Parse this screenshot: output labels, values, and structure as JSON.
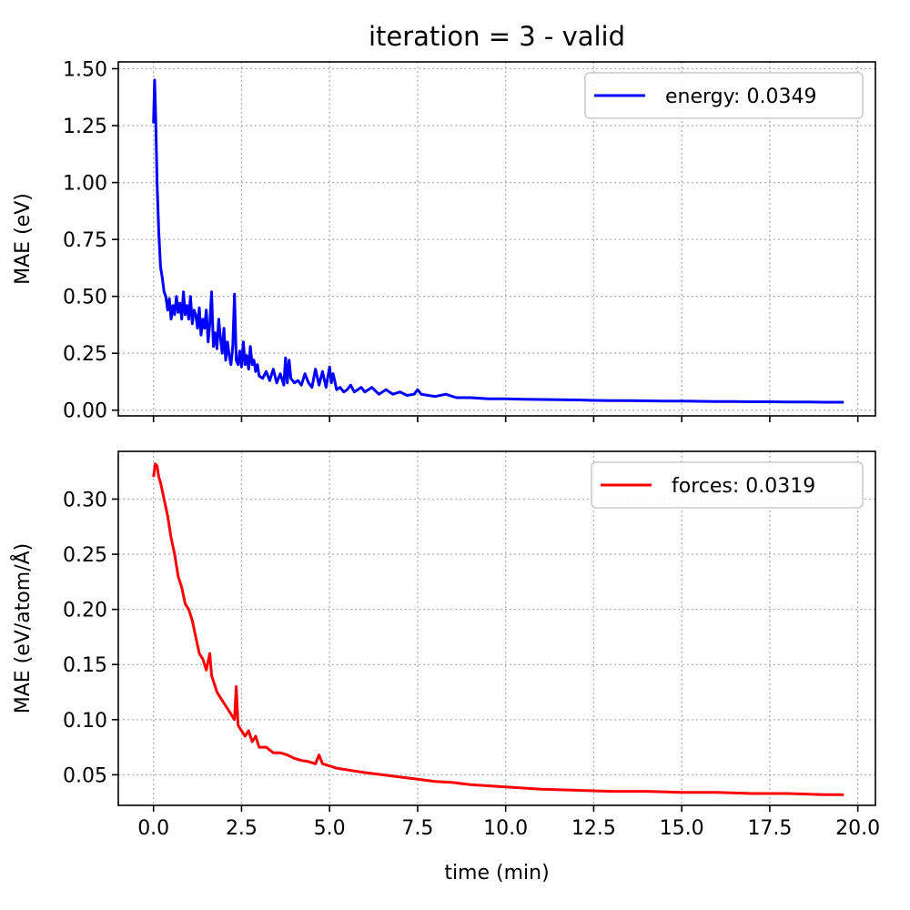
{
  "figure": {
    "title": "iteration = 3 - valid",
    "xlabel": "time (min)"
  },
  "chart_data": [
    {
      "type": "line",
      "title": "iteration = 3 - valid",
      "xlabel": "",
      "ylabel": "MAE (eV)",
      "xlim": [
        -1,
        20.5
      ],
      "ylim": [
        -0.025,
        1.53
      ],
      "xticks": [
        "0.0",
        "2.5",
        "5.0",
        "7.5",
        "10.0",
        "12.5",
        "15.0",
        "17.5",
        "20.0"
      ],
      "xtick_values": [
        0,
        2.5,
        5,
        7.5,
        10,
        12.5,
        15,
        17.5,
        20
      ],
      "show_xtick_labels": false,
      "yticks": [
        "0.00",
        "0.25",
        "0.50",
        "0.75",
        "1.00",
        "1.25",
        "1.50"
      ],
      "ytick_values": [
        0,
        0.25,
        0.5,
        0.75,
        1.0,
        1.25,
        1.5
      ],
      "grid": true,
      "legend_position": "top-right",
      "color": "#0000ff",
      "series": [
        {
          "name": "energy: 0.0349",
          "x": [
            0,
            0.03,
            0.06,
            0.1,
            0.15,
            0.2,
            0.25,
            0.3,
            0.35,
            0.4,
            0.45,
            0.5,
            0.55,
            0.6,
            0.65,
            0.7,
            0.75,
            0.8,
            0.85,
            0.9,
            0.95,
            1.0,
            1.05,
            1.1,
            1.15,
            1.2,
            1.25,
            1.3,
            1.35,
            1.4,
            1.45,
            1.5,
            1.55,
            1.6,
            1.65,
            1.7,
            1.75,
            1.8,
            1.85,
            1.9,
            1.95,
            2.0,
            2.05,
            2.1,
            2.15,
            2.2,
            2.25,
            2.3,
            2.35,
            2.4,
            2.45,
            2.5,
            2.55,
            2.6,
            2.65,
            2.7,
            2.75,
            2.8,
            2.85,
            2.9,
            2.95,
            3.0,
            3.1,
            3.2,
            3.3,
            3.4,
            3.5,
            3.6,
            3.7,
            3.75,
            3.8,
            3.85,
            3.9,
            4.0,
            4.1,
            4.2,
            4.3,
            4.4,
            4.5,
            4.6,
            4.7,
            4.8,
            4.9,
            5.0,
            5.05,
            5.1,
            5.2,
            5.3,
            5.4,
            5.5,
            5.6,
            5.7,
            5.8,
            5.9,
            6.0,
            6.2,
            6.4,
            6.6,
            6.8,
            7.0,
            7.2,
            7.4,
            7.5,
            7.6,
            7.8,
            8.0,
            8.3,
            8.6,
            9.0,
            9.5,
            10.0,
            10.5,
            11.0,
            11.5,
            12.0,
            12.5,
            13.0,
            13.5,
            14.0,
            14.5,
            15.0,
            15.5,
            16.0,
            16.5,
            17.0,
            17.5,
            18.0,
            18.5,
            19.0,
            19.6
          ],
          "y": [
            1.26,
            1.45,
            1.3,
            1.0,
            0.78,
            0.63,
            0.58,
            0.52,
            0.5,
            0.44,
            0.49,
            0.4,
            0.46,
            0.42,
            0.5,
            0.43,
            0.47,
            0.4,
            0.52,
            0.42,
            0.46,
            0.4,
            0.5,
            0.38,
            0.44,
            0.42,
            0.36,
            0.45,
            0.33,
            0.4,
            0.36,
            0.44,
            0.3,
            0.38,
            0.52,
            0.28,
            0.34,
            0.27,
            0.4,
            0.32,
            0.25,
            0.36,
            0.22,
            0.3,
            0.24,
            0.2,
            0.28,
            0.51,
            0.22,
            0.2,
            0.26,
            0.19,
            0.3,
            0.2,
            0.24,
            0.18,
            0.28,
            0.2,
            0.22,
            0.17,
            0.2,
            0.15,
            0.14,
            0.17,
            0.13,
            0.18,
            0.12,
            0.16,
            0.11,
            0.23,
            0.12,
            0.22,
            0.14,
            0.12,
            0.13,
            0.11,
            0.16,
            0.12,
            0.1,
            0.18,
            0.11,
            0.17,
            0.1,
            0.19,
            0.12,
            0.16,
            0.09,
            0.1,
            0.08,
            0.09,
            0.11,
            0.08,
            0.09,
            0.1,
            0.08,
            0.1,
            0.07,
            0.09,
            0.07,
            0.08,
            0.065,
            0.07,
            0.09,
            0.07,
            0.065,
            0.06,
            0.07,
            0.055,
            0.055,
            0.05,
            0.05,
            0.048,
            0.047,
            0.046,
            0.045,
            0.043,
            0.042,
            0.042,
            0.041,
            0.04,
            0.04,
            0.039,
            0.038,
            0.038,
            0.037,
            0.037,
            0.036,
            0.036,
            0.035,
            0.035
          ]
        }
      ]
    },
    {
      "type": "line",
      "title": "",
      "xlabel": "time (min)",
      "ylabel": "MAE (eV/atom/Å)",
      "xlim": [
        -1,
        20.5
      ],
      "ylim": [
        0.0223,
        0.3433
      ],
      "xticks": [
        "0.0",
        "2.5",
        "5.0",
        "7.5",
        "10.0",
        "12.5",
        "15.0",
        "17.5",
        "20.0"
      ],
      "xtick_values": [
        0,
        2.5,
        5,
        7.5,
        10,
        12.5,
        15,
        17.5,
        20
      ],
      "show_xtick_labels": true,
      "yticks": [
        "0.05",
        "0.10",
        "0.15",
        "0.20",
        "0.25",
        "0.30"
      ],
      "ytick_values": [
        0.05,
        0.1,
        0.15,
        0.2,
        0.25,
        0.3
      ],
      "grid": true,
      "legend_position": "top-right",
      "color": "#ff0000",
      "series": [
        {
          "name": "forces: 0.0319",
          "x": [
            0,
            0.05,
            0.1,
            0.15,
            0.2,
            0.3,
            0.4,
            0.5,
            0.6,
            0.7,
            0.8,
            0.9,
            1.0,
            1.1,
            1.2,
            1.3,
            1.4,
            1.5,
            1.6,
            1.65,
            1.7,
            1.8,
            1.9,
            2.0,
            2.1,
            2.2,
            2.3,
            2.35,
            2.4,
            2.5,
            2.6,
            2.7,
            2.8,
            2.9,
            3.0,
            3.2,
            3.4,
            3.6,
            3.8,
            4.0,
            4.2,
            4.4,
            4.6,
            4.7,
            4.8,
            5.0,
            5.2,
            5.4,
            5.6,
            5.8,
            6.0,
            6.5,
            7.0,
            7.5,
            8.0,
            8.5,
            9.0,
            10.0,
            11.0,
            12.0,
            13.0,
            14.0,
            15.0,
            16.0,
            17.0,
            18.0,
            19.0,
            19.6
          ],
          "y": [
            0.32,
            0.332,
            0.33,
            0.32,
            0.315,
            0.3,
            0.285,
            0.265,
            0.25,
            0.23,
            0.22,
            0.205,
            0.2,
            0.19,
            0.175,
            0.16,
            0.155,
            0.145,
            0.16,
            0.14,
            0.135,
            0.125,
            0.12,
            0.115,
            0.11,
            0.105,
            0.1,
            0.13,
            0.095,
            0.09,
            0.085,
            0.09,
            0.08,
            0.085,
            0.075,
            0.075,
            0.07,
            0.07,
            0.068,
            0.065,
            0.063,
            0.062,
            0.06,
            0.068,
            0.06,
            0.058,
            0.056,
            0.055,
            0.054,
            0.053,
            0.052,
            0.05,
            0.048,
            0.046,
            0.044,
            0.043,
            0.041,
            0.039,
            0.037,
            0.036,
            0.035,
            0.035,
            0.034,
            0.034,
            0.033,
            0.033,
            0.032,
            0.032
          ]
        }
      ]
    }
  ]
}
